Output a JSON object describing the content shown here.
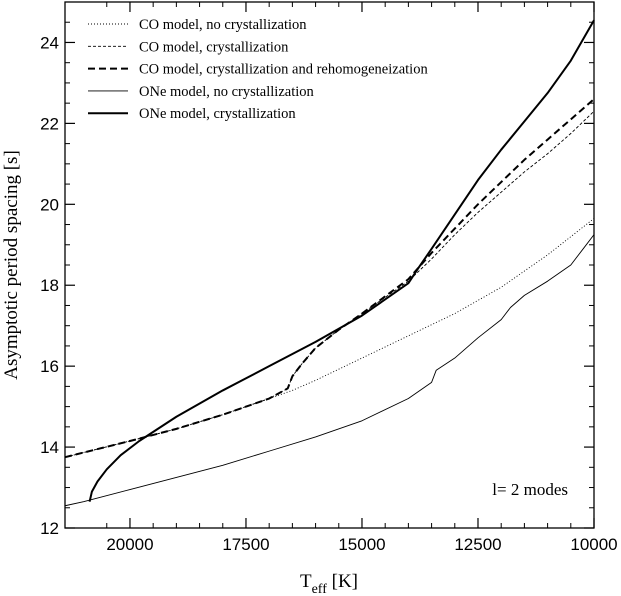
{
  "chart_data": {
    "type": "line",
    "xlabel_main": "T",
    "xlabel_sub": "eff",
    "xlabel_unit": " [K]",
    "ylabel": "Asymptotic period spacing [s]",
    "xlim": [
      21400,
      10000
    ],
    "ylim": [
      12,
      25
    ],
    "x_reversed": true,
    "xticks": [
      20000,
      17500,
      15000,
      12500,
      10000
    ],
    "yticks": [
      12,
      14,
      16,
      18,
      20,
      22,
      24
    ],
    "grid": false,
    "legend_position": "top-left",
    "annotation": "l= 2 modes",
    "series": [
      {
        "name": "CO model, no crystallization",
        "style": "dotted",
        "x": [
          21400,
          20000,
          19000,
          18000,
          17000,
          16500,
          16000,
          15000,
          14000,
          13000,
          12000,
          11000,
          10000
        ],
        "y": [
          13.75,
          14.15,
          14.45,
          14.8,
          15.2,
          15.4,
          15.65,
          16.2,
          16.75,
          17.3,
          17.95,
          18.75,
          19.65
        ]
      },
      {
        "name": "CO model, crystallization",
        "style": "dashed-thin",
        "x": [
          21400,
          20000,
          19000,
          18000,
          17000,
          16600,
          16500,
          16300,
          16000,
          15500,
          15000,
          14000,
          13500,
          13000,
          12500,
          12000,
          11500,
          11000,
          10500,
          10000
        ],
        "y": [
          13.75,
          14.15,
          14.45,
          14.8,
          15.2,
          15.45,
          15.75,
          16.05,
          16.45,
          16.9,
          17.3,
          18.1,
          18.65,
          19.25,
          19.8,
          20.3,
          20.8,
          21.25,
          21.75,
          22.3
        ]
      },
      {
        "name": "CO model, crystallization and rehomogeneization",
        "style": "dashed-thick",
        "x": [
          21400,
          20000,
          19000,
          18000,
          17000,
          16600,
          16500,
          16300,
          16000,
          15500,
          15000,
          14000,
          13500,
          13000,
          12500,
          12000,
          11500,
          11000,
          10500,
          10000
        ],
        "y": [
          13.75,
          14.15,
          14.45,
          14.8,
          15.2,
          15.45,
          15.75,
          16.05,
          16.45,
          16.9,
          17.3,
          18.15,
          18.8,
          19.4,
          20.0,
          20.55,
          21.1,
          21.6,
          22.1,
          22.6
        ]
      },
      {
        "name": "ONe model, no crystallization",
        "style": "solid-thin",
        "x": [
          21400,
          21000,
          20000,
          19000,
          18000,
          17000,
          16000,
          15000,
          14000,
          13500,
          13400,
          13000,
          12500,
          12000,
          11800,
          11500,
          11000,
          10500,
          10200,
          10000
        ],
        "y": [
          12.55,
          12.65,
          12.95,
          13.25,
          13.55,
          13.9,
          14.25,
          14.65,
          15.2,
          15.6,
          15.9,
          16.2,
          16.7,
          17.15,
          17.45,
          17.75,
          18.1,
          18.5,
          18.95,
          19.25
        ]
      },
      {
        "name": "ONe model, crystallization",
        "style": "solid-thick",
        "x": [
          20870,
          20820,
          20700,
          20500,
          20200,
          19800,
          19400,
          19000,
          18000,
          17000,
          16000,
          15000,
          14000,
          13800,
          13500,
          13000,
          12500,
          12000,
          11500,
          11000,
          10500,
          10000
        ],
        "y": [
          12.65,
          12.9,
          13.15,
          13.45,
          13.8,
          14.15,
          14.45,
          14.75,
          15.4,
          16.0,
          16.6,
          17.25,
          18.05,
          18.4,
          18.9,
          19.75,
          20.6,
          21.35,
          22.05,
          22.75,
          23.55,
          24.55
        ]
      }
    ]
  }
}
